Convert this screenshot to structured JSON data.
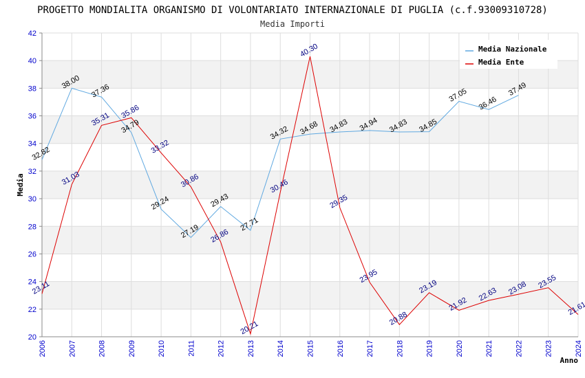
{
  "chart_data": {
    "type": "line",
    "title": "PROGETTO MONDIALITA ORGANISMO DI VOLONTARIATO INTERNAZIONALE DI PUGLIA (c.f.93009310728)",
    "subtitle": "Media Importi",
    "xlabel": "Anno",
    "ylabel": "Media",
    "ylim": [
      20,
      42
    ],
    "yticks": [
      "20",
      "22",
      "24",
      "26",
      "28",
      "30",
      "32",
      "34",
      "36",
      "38",
      "40",
      "42"
    ],
    "x": [
      "2006",
      "2007",
      "2008",
      "2009",
      "2010",
      "2011",
      "2012",
      "2013",
      "2014",
      "2015",
      "2016",
      "2017",
      "2018",
      "2019",
      "2020",
      "2021",
      "2022",
      "2023",
      "2024"
    ],
    "legend_position": "top-right",
    "series": [
      {
        "name": "Media Nazionale",
        "color": "#5fa8e0",
        "label_color": "#000000",
        "values": [
          32.82,
          38.0,
          37.36,
          34.79,
          29.24,
          27.19,
          29.43,
          27.71,
          34.32,
          34.68,
          34.83,
          34.94,
          34.83,
          34.85,
          37.05,
          36.46,
          37.49,
          null,
          null
        ],
        "labels": [
          "32.82",
          "38.00",
          "37.36",
          "34.79",
          "29.24",
          "27.19",
          "29.43",
          "27.71",
          "34.32",
          "34.68",
          "34.83",
          "34.94",
          "34.83",
          "34.85",
          "37.05",
          "36.46",
          "37.49",
          null,
          null
        ]
      },
      {
        "name": "Media Ente",
        "color": "#dd0000",
        "label_color": "#000080",
        "values": [
          23.11,
          31.03,
          35.31,
          35.86,
          33.32,
          30.86,
          26.86,
          20.21,
          30.46,
          40.3,
          29.35,
          23.95,
          20.88,
          23.19,
          21.92,
          22.63,
          23.08,
          23.55,
          21.61
        ],
        "labels": [
          "23.11",
          "31.03",
          "35.31",
          "35.86",
          "33.32",
          "30.86",
          "26.86",
          "20.21",
          "30.46",
          "40.30",
          "29.35",
          "23.95",
          "20.88",
          "23.19",
          "21.92",
          "22.63",
          "23.08",
          "23.55",
          "21.61"
        ]
      }
    ]
  }
}
